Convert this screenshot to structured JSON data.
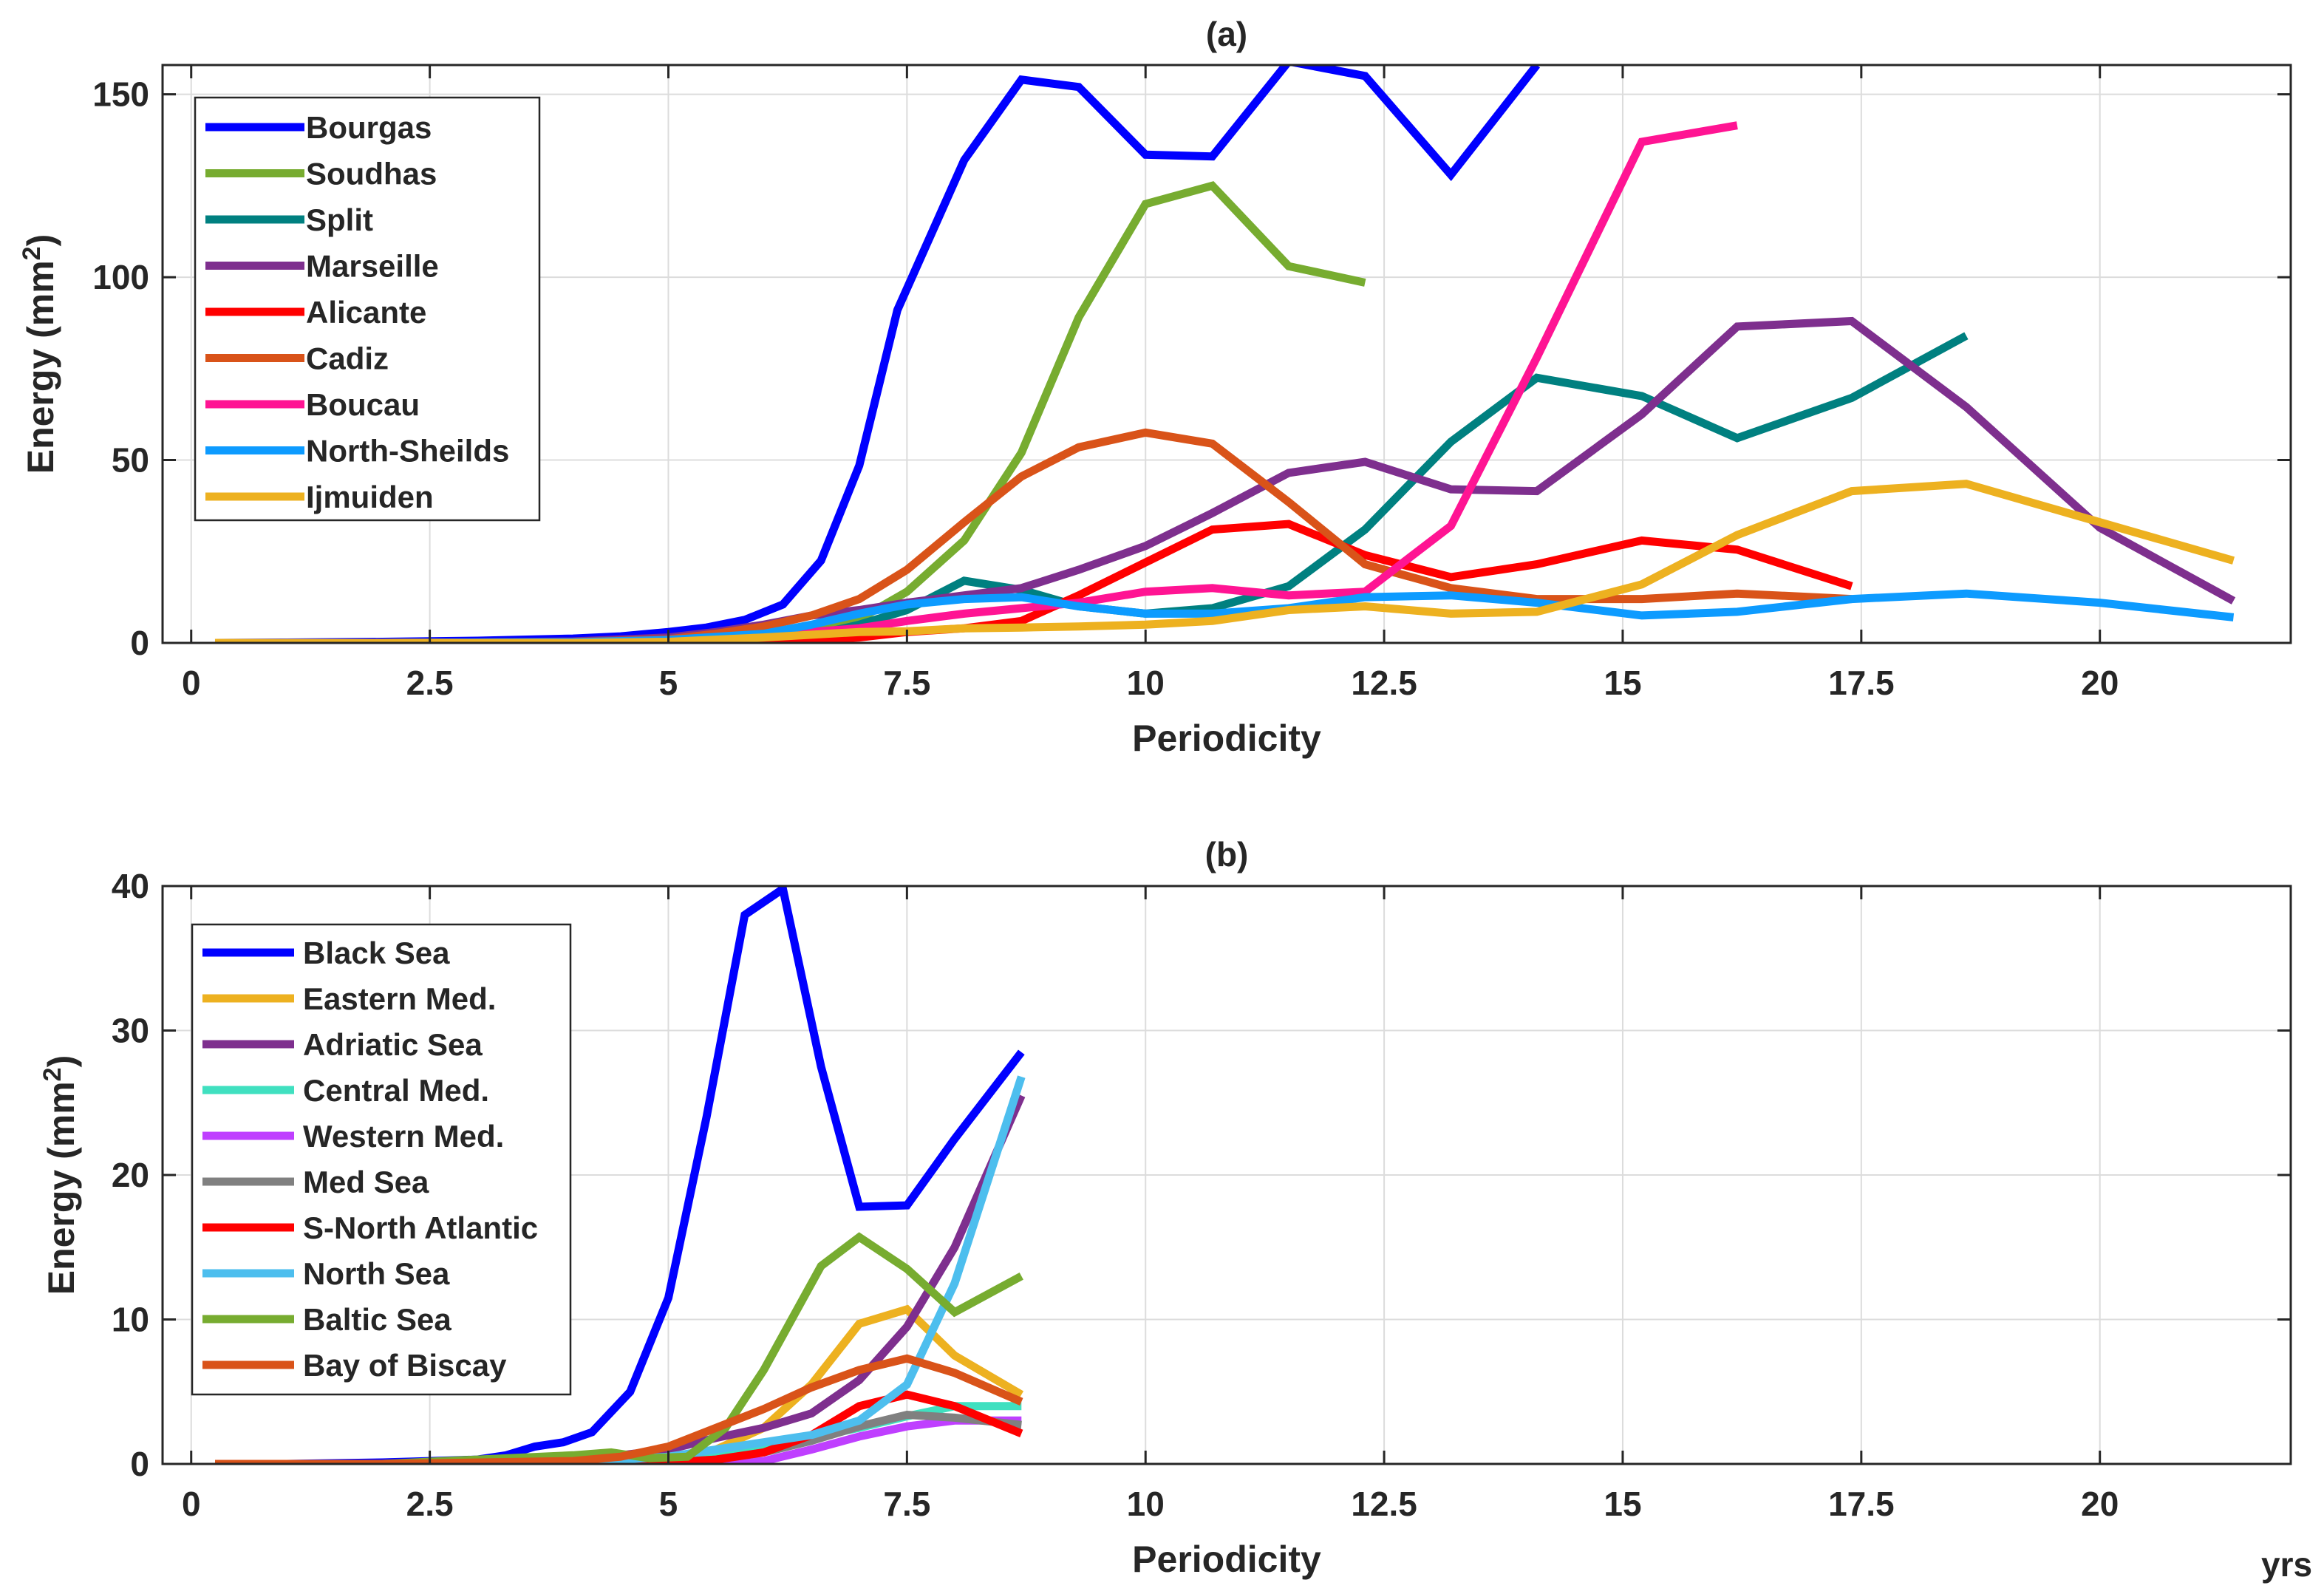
{
  "chart_data": [
    {
      "type": "line",
      "title": "(a)",
      "xlabel": "Periodicity",
      "ylabel": "Energy (mm",
      "ylabel_sup": "2",
      "ylabel_end": ")",
      "xlim": [
        -0.3,
        22
      ],
      "ylim": [
        0,
        158
      ],
      "xticks": [
        0,
        2.5,
        5,
        7.5,
        10,
        12.5,
        15,
        17.5,
        20
      ],
      "xtick_labels": [
        "0",
        "2.5",
        "5",
        "7.5",
        "10",
        "12.5",
        "15",
        "17.5",
        "20"
      ],
      "yticks": [
        0,
        50,
        100,
        150
      ],
      "ytick_labels": [
        "0",
        "50",
        "100",
        "150"
      ],
      "grid": true,
      "legend_position": "top-left",
      "series": [
        {
          "name": "Bourgas",
          "color": "#0000ff",
          "x": [
            0.25,
            1,
            2,
            3,
            4,
            4.5,
            5,
            5.4,
            5.8,
            6.2,
            6.6,
            7,
            7.4,
            8.1,
            8.7,
            9.3,
            10,
            10.7,
            11.5,
            12.3,
            13.2,
            14.1
          ],
          "y": [
            0,
            0.1,
            0.3,
            0.6,
            1.2,
            1.8,
            3,
            4.2,
            6.3,
            10.5,
            22.5,
            48.5,
            91,
            132,
            154,
            152,
            133.5,
            133,
            159,
            155,
            128,
            158
          ]
        },
        {
          "name": "Soudhas",
          "color": "#77ac30",
          "x": [
            0.25,
            1,
            2,
            3,
            4,
            5,
            5.5,
            6,
            6.5,
            7,
            7.5,
            8.1,
            8.7,
            9.3,
            10,
            10.7,
            11.5,
            12.3
          ],
          "y": [
            0,
            0,
            0,
            0.1,
            0.2,
            0.5,
            0.8,
            1.5,
            3,
            6.5,
            14,
            28,
            52,
            89,
            120,
            125,
            103,
            98.5
          ]
        },
        {
          "name": "Split",
          "color": "#008080",
          "x": [
            0.25,
            2,
            4,
            5,
            5.5,
            6,
            6.5,
            7,
            7.5,
            8.1,
            8.7,
            9.3,
            10,
            10.7,
            11.5,
            12.3,
            13.2,
            14.1,
            15.2,
            16.2,
            17.4,
            18.6
          ],
          "y": [
            0,
            0,
            0,
            0.2,
            0.4,
            0.8,
            2,
            5,
            9,
            17,
            14.5,
            10,
            8,
            9.5,
            15.5,
            31,
            55,
            72.5,
            67.5,
            56,
            67,
            84
          ]
        },
        {
          "name": "Marseille",
          "color": "#7e2f8e",
          "x": [
            0.25,
            2,
            3,
            4,
            5,
            5.5,
            6,
            6.5,
            7,
            7.5,
            8.1,
            8.7,
            9.3,
            10,
            10.7,
            11.5,
            12.3,
            13.2,
            14.1,
            15.2,
            16.2,
            17.4,
            18.6,
            20,
            21.4
          ],
          "y": [
            0,
            0,
            0.1,
            0.4,
            1.5,
            3,
            5,
            7.5,
            9,
            11,
            13,
            15,
            20,
            26.5,
            35.5,
            46.5,
            49.5,
            42,
            41.5,
            62.5,
            86.5,
            88,
            64.5,
            31.5,
            11.5
          ]
        },
        {
          "name": "Alicante",
          "color": "#ff0000",
          "x": [
            0.25,
            2,
            4,
            5,
            6,
            7,
            7.5,
            8.1,
            8.7,
            9.3,
            10,
            10.7,
            11.5,
            12.3,
            13.2,
            14.1,
            15.2,
            16.2,
            17.4
          ],
          "y": [
            0,
            0,
            0,
            0,
            0.3,
            1.5,
            3,
            4,
            6,
            13,
            22,
            31,
            32.5,
            24,
            18,
            21.5,
            28,
            25.5,
            15.5
          ]
        },
        {
          "name": "Cadiz",
          "color": "#d95319",
          "x": [
            0.25,
            2,
            4,
            5,
            5.5,
            6,
            6.5,
            7,
            7.5,
            8.1,
            8.7,
            9.3,
            10,
            10.7,
            11.5,
            12.3,
            13.2,
            14.1,
            15.2,
            16.2,
            17.4
          ],
          "y": [
            0,
            0,
            0.2,
            1,
            2.5,
            4.5,
            7.5,
            12,
            20,
            33,
            45.5,
            53.5,
            57.5,
            54.5,
            38.5,
            21.5,
            15,
            12,
            12,
            13.5,
            12
          ]
        },
        {
          "name": "Boucau",
          "color": "#ff1493",
          "x": [
            0.25,
            2,
            4,
            5,
            6,
            7,
            7.5,
            8.1,
            8.7,
            9.3,
            10,
            10.7,
            11.5,
            12.3,
            13.2,
            14.1,
            15.2,
            16.2
          ],
          "y": [
            0,
            0,
            0,
            0.5,
            2,
            4,
            6,
            8,
            9.5,
            11,
            14,
            15,
            13,
            14,
            32,
            78,
            137,
            141.5
          ]
        },
        {
          "name": "North-Sheilds",
          "color": "#0d9bff",
          "x": [
            0.25,
            2,
            4,
            5,
            6,
            6.5,
            7,
            7.5,
            8.1,
            8.7,
            9.3,
            10,
            10.7,
            11.5,
            12.3,
            13.2,
            14.1,
            15.2,
            16.2,
            17.4,
            18.6,
            20,
            21.4
          ],
          "y": [
            0,
            0,
            0.2,
            0.8,
            2.5,
            5,
            8,
            10.5,
            12,
            12.5,
            10,
            8,
            8,
            9.5,
            12.5,
            13,
            11,
            7.5,
            8.5,
            12,
            13.5,
            11,
            7
          ]
        },
        {
          "name": "Ijmuiden",
          "color": "#edb120",
          "x": [
            0.25,
            2,
            4,
            5,
            6,
            7,
            7.5,
            8.1,
            8.7,
            9.3,
            10,
            10.7,
            11.5,
            12.3,
            13.2,
            14.1,
            15.2,
            16.2,
            17.4,
            18.6,
            20,
            21.4
          ],
          "y": [
            0,
            0,
            0,
            0.3,
            1.5,
            3,
            3.2,
            4,
            4.2,
            4.5,
            5,
            6,
            9,
            10,
            8,
            8.5,
            16,
            29.5,
            41.5,
            43.5,
            33,
            22.5
          ]
        }
      ]
    },
    {
      "type": "line",
      "title": "(b)",
      "xlabel": "Periodicity",
      "ylabel": "Energy (mm",
      "ylabel_sup": "2",
      "ylabel_end": ")",
      "unit_label": "yrs",
      "xlim": [
        -0.3,
        22
      ],
      "ylim": [
        0,
        40
      ],
      "xticks": [
        0,
        2.5,
        5,
        7.5,
        10,
        12.5,
        15,
        17.5,
        20
      ],
      "xtick_labels": [
        "0",
        "2.5",
        "5",
        "7.5",
        "10",
        "12.5",
        "15",
        "17.5",
        "20"
      ],
      "yticks": [
        0,
        10,
        20,
        30,
        40
      ],
      "ytick_labels": [
        "0",
        "10",
        "20",
        "30",
        "40"
      ],
      "grid": true,
      "legend_position": "top-left",
      "series": [
        {
          "name": "Black Sea",
          "color": "#0000ff",
          "x": [
            0.25,
            1,
            2,
            2.5,
            3,
            3.3,
            3.6,
            3.9,
            4.2,
            4.6,
            5,
            5.4,
            5.8,
            6.2,
            6.6,
            7,
            7.5,
            8,
            8.7
          ],
          "y": [
            0,
            0,
            0.1,
            0.2,
            0.3,
            0.6,
            1.2,
            1.5,
            2.2,
            5,
            11.5,
            24,
            38,
            39.8,
            27.5,
            17.8,
            17.9,
            22.5,
            28.5
          ]
        },
        {
          "name": "Eastern Med.",
          "color": "#edb120",
          "x": [
            0.25,
            2,
            4,
            5,
            5.5,
            6,
            6.5,
            7,
            7.5,
            8,
            8.7
          ],
          "y": [
            0,
            0,
            0.1,
            0.3,
            1,
            2.5,
            5.5,
            9.7,
            10.7,
            7.5,
            4.8
          ]
        },
        {
          "name": "Adriatic Sea",
          "color": "#7e2f8e",
          "x": [
            0.25,
            2,
            4,
            5,
            5.5,
            6,
            6.5,
            7,
            7.5,
            8,
            8.7
          ],
          "y": [
            0,
            0,
            0.2,
            1,
            1.8,
            2.5,
            3.5,
            5.8,
            9.5,
            15,
            25.5
          ]
        },
        {
          "name": "Central Med.",
          "color": "#40e0c0",
          "x": [
            0.25,
            2,
            4,
            5,
            5.5,
            6,
            6.5,
            7,
            7.5,
            8,
            8.7
          ],
          "y": [
            0,
            0,
            0,
            0.2,
            0.6,
            1.2,
            1.8,
            2.5,
            3.3,
            4,
            4
          ]
        },
        {
          "name": "Western Med.",
          "color": "#bf3fff",
          "x": [
            0.25,
            2,
            4,
            5,
            5.5,
            6,
            6.5,
            7,
            7.5,
            8,
            8.7
          ],
          "y": [
            0,
            0,
            0,
            0,
            0,
            0.2,
            1,
            1.9,
            2.6,
            3,
            3
          ]
        },
        {
          "name": "Med Sea",
          "color": "#808080",
          "x": [
            0.25,
            2,
            4,
            5,
            5.5,
            6,
            6.5,
            7,
            7.5,
            8,
            8.7
          ],
          "y": [
            0,
            0,
            0,
            0.1,
            0.3,
            0.8,
            1.6,
            2.6,
            3.4,
            3.2,
            2.7
          ]
        },
        {
          "name": "S-North Atlantic",
          "color": "#ff0000",
          "x": [
            0.25,
            2,
            4,
            5,
            5.5,
            6,
            6.5,
            7,
            7.5,
            8,
            8.7
          ],
          "y": [
            0,
            0,
            0,
            0.1,
            0.3,
            0.8,
            2,
            4,
            4.8,
            4,
            2.1
          ]
        },
        {
          "name": "North Sea",
          "color": "#4dbeee",
          "x": [
            0.25,
            2,
            4,
            5,
            5.5,
            6,
            6.5,
            7,
            7.5,
            8,
            8.7
          ],
          "y": [
            0,
            0,
            0.1,
            0.5,
            1,
            1.5,
            2,
            3,
            5.5,
            12.5,
            26.8
          ]
        },
        {
          "name": "Baltic Sea",
          "color": "#77ac30",
          "x": [
            0.25,
            2,
            3,
            4,
            4.4,
            4.8,
            5.2,
            5.6,
            6,
            6.6,
            7,
            7.5,
            8,
            8.7
          ],
          "y": [
            0,
            0,
            0.3,
            0.6,
            0.8,
            0.4,
            0.5,
            2.5,
            6.5,
            13.7,
            15.7,
            13.5,
            10.5,
            13
          ]
        },
        {
          "name": "Bay of Biscay",
          "color": "#d95319",
          "x": [
            0.25,
            2,
            4,
            4.5,
            5,
            5.5,
            6,
            6.5,
            7,
            7.5,
            8,
            8.7
          ],
          "y": [
            0,
            0,
            0.2,
            0.5,
            1.2,
            2.5,
            3.8,
            5.3,
            6.5,
            7.3,
            6.3,
            4.3
          ]
        }
      ]
    }
  ]
}
